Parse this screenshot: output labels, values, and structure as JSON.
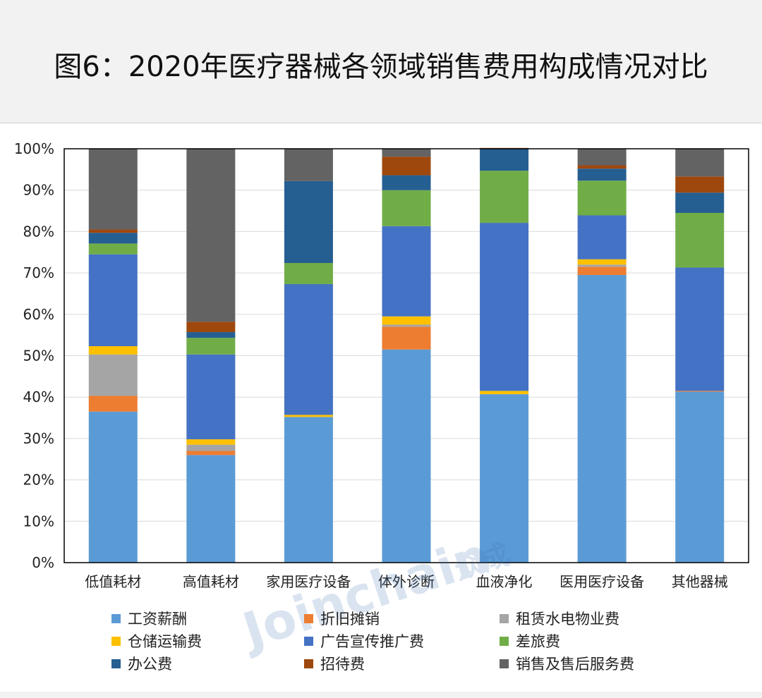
{
  "title": "图6：2020年医疗器械各领域销售费用构成情况对比",
  "watermark": "Joinchain",
  "watermark_mark": "众成",
  "chart_data": {
    "type": "bar",
    "stacked": true,
    "percent": true,
    "title": "图6：2020年医疗器械各领域销售费用构成情况对比",
    "categories": [
      "低值耗材",
      "高值耗材",
      "家用医疗设备",
      "体外诊断",
      "血液净化",
      "医用医疗设备",
      "其他器械"
    ],
    "y_ticks": [
      "0%",
      "10%",
      "20%",
      "30%",
      "40%",
      "50%",
      "60%",
      "70%",
      "80%",
      "90%",
      "100%"
    ],
    "ylim": [
      0,
      100
    ],
    "legend_position": "bottom",
    "series": [
      {
        "name": "工资薪酬",
        "color": "#5b9bd5",
        "values": [
          36.5,
          26.0,
          35.2,
          51.5,
          40.7,
          69.5,
          41.3
        ]
      },
      {
        "name": "折旧摊销",
        "color": "#ed7d31",
        "values": [
          3.8,
          1.0,
          0.0,
          5.5,
          0.0,
          2.0,
          0.2
        ]
      },
      {
        "name": "租赁水电物业费",
        "color": "#a5a5a5",
        "values": [
          10.0,
          1.5,
          0.0,
          0.5,
          0.0,
          0.5,
          0.0
        ]
      },
      {
        "name": "仓储运输费",
        "color": "#ffc000",
        "values": [
          2.0,
          1.3,
          0.5,
          2.0,
          0.8,
          1.3,
          0.0
        ]
      },
      {
        "name": "广告宣传推广费",
        "color": "#4472c4",
        "values": [
          22.2,
          20.5,
          31.6,
          21.8,
          40.6,
          10.6,
          29.8
        ]
      },
      {
        "name": "差旅费",
        "color": "#70ad47",
        "values": [
          2.6,
          4.0,
          5.1,
          8.7,
          12.6,
          8.4,
          13.2
        ]
      },
      {
        "name": "办公费",
        "color": "#255e91",
        "values": [
          2.6,
          1.4,
          19.8,
          3.6,
          5.3,
          2.9,
          4.9
        ]
      },
      {
        "name": "招待费",
        "color": "#9e480e",
        "values": [
          0.8,
          2.5,
          0.0,
          4.5,
          0.2,
          0.8,
          3.9
        ]
      },
      {
        "name": "销售及售后服务费",
        "color": "#636363",
        "values": [
          19.5,
          41.8,
          7.8,
          1.9,
          0.0,
          4.0,
          6.7
        ]
      }
    ]
  }
}
